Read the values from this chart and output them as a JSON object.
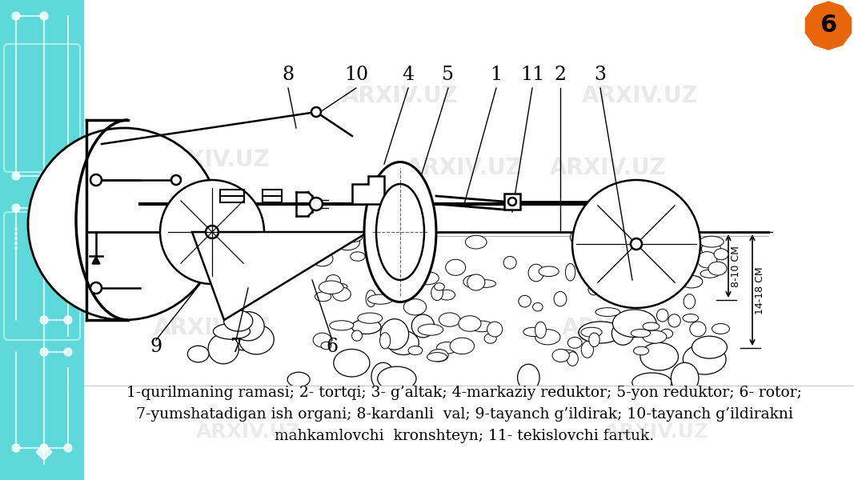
{
  "bg_color": "#ffffff",
  "left_panel_color_top": "#7ee8e8",
  "left_panel_color_bot": "#4dcfcf",
  "page_number": "6",
  "page_number_color": "#e8650a",
  "caption_lines": [
    "1-qurilmaning ramasi; 2- tortqi; 3- g’altak; 4-markaziy reduktor; 5-yon reduktor; 6- rotor;",
    "7-yumshatadigan ish organi; 8-kardanli  val; 9-tayanch g’ildirak; 10-tayanch g’ildirakni",
    "mahkamlovchi  kronshteyn; 11- tekislovchi fartuk."
  ],
  "caption_fontsize": 13.5,
  "label_fontsize": 17,
  "dim_label_8_10": "8-10 CM",
  "dim_label_14_18": "14-18 CM"
}
